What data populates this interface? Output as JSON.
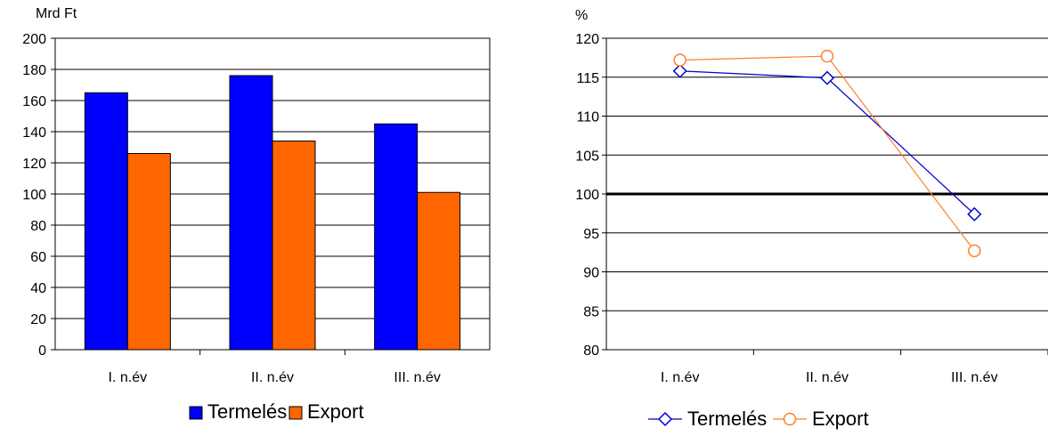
{
  "chart_data": [
    {
      "type": "bar",
      "unit_label": "Mrd Ft",
      "categories": [
        "I. n.év",
        "II. n.év",
        "III. n.év"
      ],
      "series": [
        {
          "name": "Termelés",
          "color": "#0000ff",
          "values": [
            165,
            176,
            145
          ]
        },
        {
          "name": "Export",
          "color": "#ff6600",
          "values": [
            126,
            134,
            101
          ]
        }
      ],
      "ylim": [
        0,
        200
      ],
      "yticks": [
        "0",
        "20",
        "40",
        "60",
        "80",
        "100",
        "120",
        "140",
        "160",
        "180",
        "200"
      ],
      "grid": true,
      "legend": "bottom"
    },
    {
      "type": "line",
      "unit_label": "%",
      "categories": [
        "I. n.év",
        "II. n.év",
        "III. n.év"
      ],
      "series": [
        {
          "name": "Termelés",
          "color": "#0000cc",
          "marker": "diamond",
          "values": [
            115.8,
            114.9,
            97.4
          ]
        },
        {
          "name": "Export",
          "color": "#ff7f27",
          "marker": "circle",
          "values": [
            117.2,
            117.7,
            92.7
          ]
        }
      ],
      "ylim": [
        80,
        120
      ],
      "yticks": [
        "80",
        "85",
        "90",
        "95",
        "100",
        "105",
        "110",
        "115",
        "120"
      ],
      "reference_line": 100,
      "grid": true,
      "legend": "bottom"
    }
  ]
}
